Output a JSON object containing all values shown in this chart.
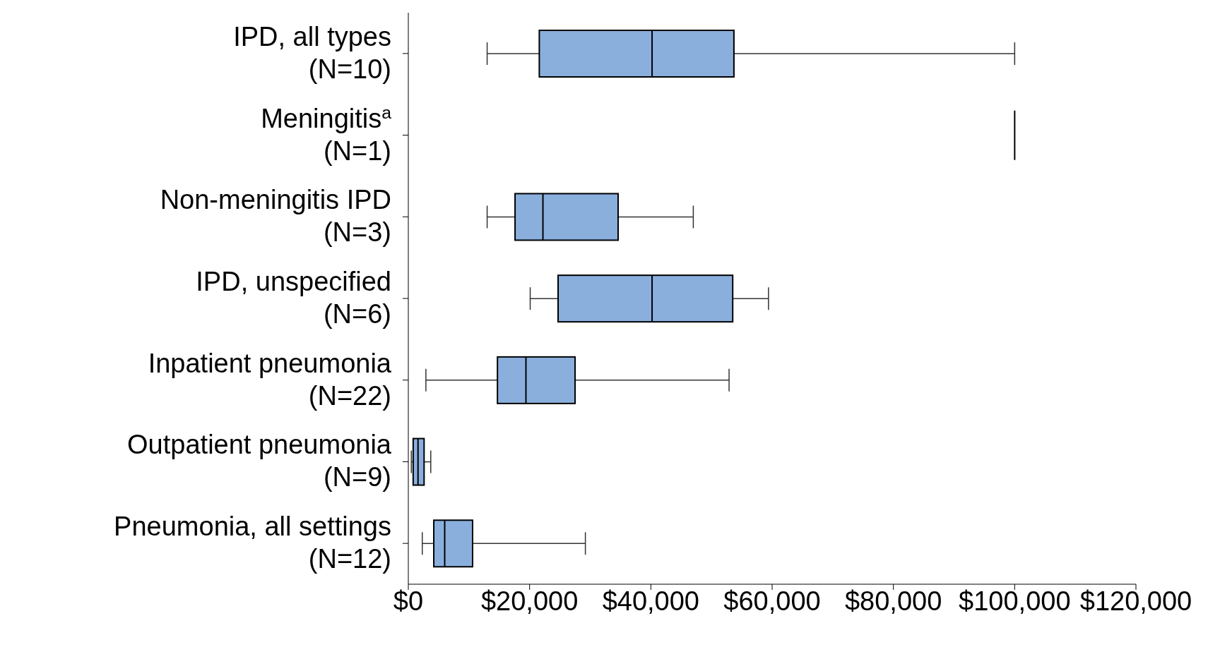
{
  "chart_data": {
    "type": "box",
    "orientation": "horizontal",
    "categories": [
      "IPD, all types (N=10)",
      "Meningitis$^{a}$ (N=1)",
      "Non-meningitis IPD (N=3)",
      "IPD, unspecified (N=6)",
      "Inpatient pneumonia (N=22)",
      "Outpatient pneumonia (N=9)",
      "Pneumonia, all settings (N=12)"
    ],
    "color": "#8aafdd",
    "boxes": [
      {
        "low": 13000,
        "q1": 21600,
        "median": 40200,
        "q3": 53700,
        "high": 100000
      },
      {
        "low": 100000,
        "q1": 100000,
        "median": 100000,
        "q3": 100000,
        "high": 100000
      },
      {
        "low": 13000,
        "q1": 17600,
        "median": 22200,
        "q3": 34600,
        "high": 47000
      },
      {
        "low": 20100,
        "q1": 24700,
        "median": 40200,
        "q3": 53500,
        "high": 59400
      },
      {
        "low": 2900,
        "q1": 14700,
        "median": 19400,
        "q3": 27500,
        "high": 52900
      },
      {
        "low": 500,
        "q1": 800,
        "median": 1600,
        "q3": 2600,
        "high": 3700
      },
      {
        "low": 2300,
        "q1": 4200,
        "median": 6000,
        "q3": 10600,
        "high": 29200
      }
    ],
    "xlim": [
      0,
      120000
    ],
    "xticks": [
      {
        "value": 0,
        "label": "$0"
      },
      {
        "value": 20000,
        "label": "$20,000"
      },
      {
        "value": 40000,
        "label": "$40,000"
      },
      {
        "value": 60000,
        "label": "$60,000"
      },
      {
        "value": 80000,
        "label": "$80,000"
      },
      {
        "value": 100000,
        "label": "$100,000"
      },
      {
        "value": 120000,
        "label": "$120,000"
      }
    ],
    "grid": false
  }
}
